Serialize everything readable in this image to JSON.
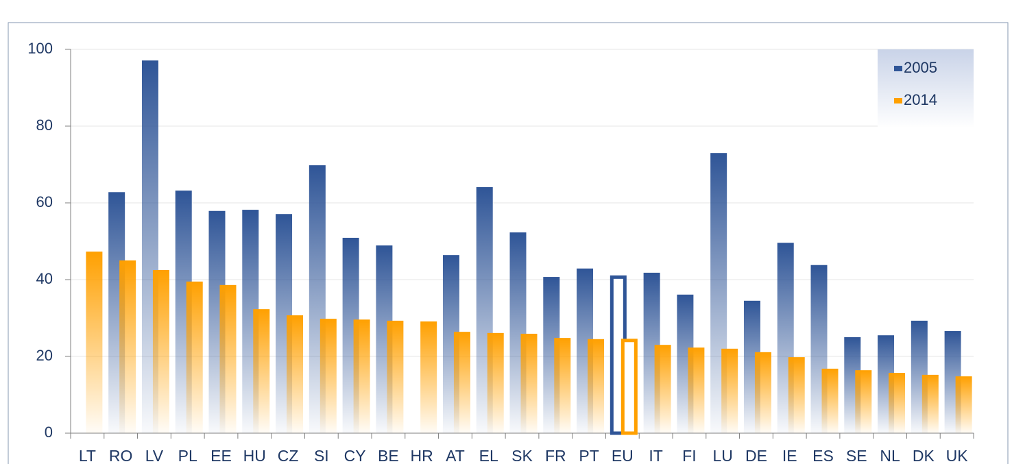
{
  "chart_data": {
    "type": "bar",
    "categories": [
      "LT",
      "RO",
      "LV",
      "PL",
      "EE",
      "HU",
      "CZ",
      "SI",
      "CY",
      "BE",
      "HR",
      "AT",
      "EL",
      "SK",
      "FR",
      "PT",
      "EU",
      "IT",
      "FI",
      "LU",
      "DE",
      "IE",
      "ES",
      "SE",
      "NL",
      "DK",
      "UK"
    ],
    "series": [
      {
        "name": "2005",
        "color": "#2f5597",
        "values": [
          null,
          62.8,
          97.1,
          63.2,
          57.9,
          58.2,
          57.1,
          69.8,
          50.9,
          48.9,
          null,
          46.4,
          64.1,
          52.3,
          40.7,
          42.9,
          41.1,
          41.8,
          36.1,
          73.0,
          34.5,
          49.6,
          43.8,
          25.0,
          25.5,
          29.3,
          26.6
        ]
      },
      {
        "name": "2014",
        "color": "#ffa000",
        "values": [
          47.3,
          45.0,
          42.5,
          39.5,
          38.6,
          32.3,
          30.7,
          29.8,
          29.6,
          29.3,
          29.1,
          26.4,
          26.1,
          25.9,
          24.8,
          24.5,
          24.6,
          23.0,
          22.3,
          22.0,
          21.1,
          19.8,
          16.8,
          16.4,
          15.7,
          15.2,
          14.8
        ]
      }
    ],
    "outlined_category": "EU",
    "ylim": [
      0,
      100
    ],
    "yticks": [
      0,
      20,
      40,
      60,
      80,
      100
    ],
    "grid": true,
    "legend": "top-right"
  }
}
